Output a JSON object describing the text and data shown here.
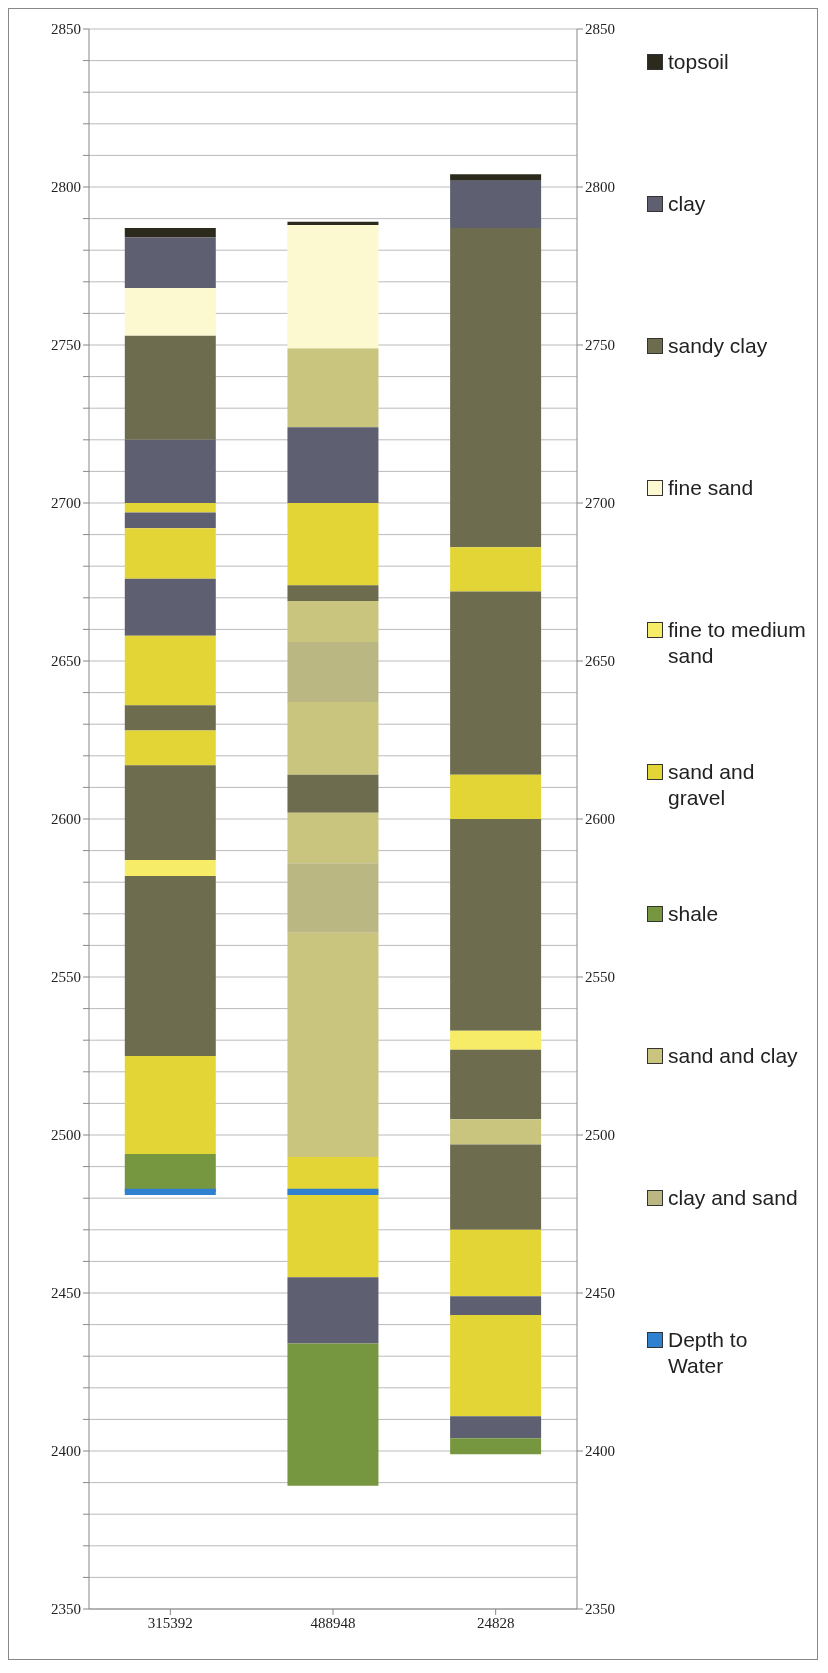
{
  "chart_data": {
    "type": "bar",
    "categories": [
      "315392",
      "488948",
      "24828"
    ],
    "ylim": [
      2350,
      2850
    ],
    "yticks": [
      2350,
      {
        "value": 2360,
        "label": null
      },
      {
        "value": 2370,
        "label": null
      },
      {
        "value": 2380,
        "label": null
      },
      {
        "value": 2390,
        "label": null
      },
      2400,
      {
        "value": 2410,
        "label": null
      },
      {
        "value": 2420,
        "label": null
      },
      {
        "value": 2430,
        "label": null
      },
      {
        "value": 2440,
        "label": null
      },
      2450,
      {
        "value": 2460,
        "label": null
      },
      {
        "value": 2470,
        "label": null
      },
      {
        "value": 2480,
        "label": null
      },
      {
        "value": 2490,
        "label": null
      },
      2500,
      {
        "value": 2510,
        "label": null
      },
      {
        "value": 2520,
        "label": null
      },
      {
        "value": 2530,
        "label": null
      },
      {
        "value": 2540,
        "label": null
      },
      2550,
      {
        "value": 2560,
        "label": null
      },
      {
        "value": 2570,
        "label": null
      },
      {
        "value": 2580,
        "label": null
      },
      {
        "value": 2590,
        "label": null
      },
      2600,
      {
        "value": 2610,
        "label": null
      },
      {
        "value": 2620,
        "label": null
      },
      {
        "value": 2630,
        "label": null
      },
      {
        "value": 2640,
        "label": null
      },
      2650,
      {
        "value": 2660,
        "label": null
      },
      {
        "value": 2670,
        "label": null
      },
      {
        "value": 2680,
        "label": null
      },
      {
        "value": 2690,
        "label": null
      },
      2700,
      {
        "value": 2710,
        "label": null
      },
      {
        "value": 2720,
        "label": null
      },
      {
        "value": 2730,
        "label": null
      },
      {
        "value": 2740,
        "label": null
      },
      2750,
      {
        "value": 2760,
        "label": null
      },
      {
        "value": 2770,
        "label": null
      },
      {
        "value": 2780,
        "label": null
      },
      {
        "value": 2790,
        "label": null
      },
      2800,
      {
        "value": 2810,
        "label": null
      },
      {
        "value": 2820,
        "label": null
      },
      {
        "value": 2830,
        "label": null
      },
      {
        "value": 2840,
        "label": null
      },
      2850
    ],
    "y2lim": [
      2350,
      2850
    ],
    "y2ticks": [
      2350,
      2400,
      2450,
      2500,
      2550,
      2600,
      2650,
      2700,
      2750,
      2800,
      2850
    ],
    "grid": "y",
    "legend": "right",
    "series": [
      {
        "name": "topsoil",
        "color": "#2b2a1c",
        "base": [
          2784,
          null,
          null
        ],
        "values": [
          3,
          null,
          null
        ]
      },
      {
        "name": "clay",
        "color": "#5e5f70",
        "base": [
          2768,
          null,
          null
        ],
        "values": [
          16,
          null,
          null
        ]
      },
      {
        "name": "sandy clay",
        "color": "#6e6c4e",
        "base": [
          2720,
          null,
          null
        ],
        "values": [
          33,
          null,
          null
        ]
      },
      {
        "name": "fine sand",
        "color": "#fcf8cf",
        "base": [
          2753,
          null,
          null
        ],
        "values": [
          15,
          null,
          null
        ]
      },
      {
        "name": "fine to medium sand",
        "color": "#f6ec68",
        "base": [
          2582,
          null,
          null
        ],
        "values": [
          5,
          null,
          null
        ]
      },
      {
        "name": "sand and gravel",
        "color": "#e4d536",
        "base": [
          2697,
          null,
          null
        ],
        "values": [
          3,
          null,
          null
        ]
      },
      {
        "name": "shale",
        "color": "#76963f",
        "base": [
          2482,
          null,
          null
        ],
        "values": [
          12,
          null,
          null
        ]
      },
      {
        "name": "sand and clay",
        "color": "#c9c47e",
        "base": [
          null,
          2724,
          null
        ],
        "values": [
          null,
          25,
          null
        ]
      },
      {
        "name": "clay and sand",
        "color": "#bbb783",
        "base": [
          null,
          2637,
          null
        ],
        "values": [
          null,
          19,
          null
        ]
      },
      {
        "color": "#5e5f70",
        "base": [
          2700,
          null,
          null
        ],
        "values": [
          20,
          null,
          null
        ]
      },
      {
        "color": "#5e5f70",
        "base": [
          2692,
          null,
          null
        ],
        "values": [
          5,
          null,
          null
        ]
      },
      {
        "color": "#e4d536",
        "base": [
          2676,
          null,
          null
        ],
        "values": [
          16,
          null,
          null
        ]
      },
      {
        "color": "#5e5f70",
        "base": [
          2658,
          null,
          null
        ],
        "values": [
          18,
          null,
          null
        ]
      },
      {
        "color": "#e4d536",
        "base": [
          2636,
          null,
          null
        ],
        "values": [
          22,
          null,
          null
        ]
      },
      {
        "color": "#6e6c4e",
        "base": [
          2628,
          null,
          null
        ],
        "values": [
          8,
          null,
          null
        ]
      },
      {
        "color": "#e4d536",
        "base": [
          2617,
          null,
          null
        ],
        "values": [
          11,
          null,
          null
        ]
      },
      {
        "color": "#6e6c4e",
        "base": [
          2587,
          null,
          null
        ],
        "values": [
          30,
          null,
          null
        ]
      },
      {
        "color": "#6e6c4e",
        "base": [
          2525,
          null,
          null
        ],
        "values": [
          57,
          null,
          null
        ]
      },
      {
        "color": "#e4d536",
        "base": [
          2494,
          null,
          null
        ],
        "values": [
          31,
          null,
          null
        ]
      },
      {
        "color": "#2b2a1c",
        "base": [
          null,
          2788,
          null
        ],
        "values": [
          null,
          1,
          null
        ]
      },
      {
        "color": "#fcf8cf",
        "base": [
          null,
          2749,
          null
        ],
        "values": [
          null,
          39,
          null
        ]
      },
      {
        "color": "#5e5f70",
        "base": [
          null,
          2700,
          null
        ],
        "values": [
          null,
          24,
          null
        ]
      },
      {
        "color": "#e4d536",
        "base": [
          null,
          2674,
          null
        ],
        "values": [
          null,
          26,
          null
        ]
      },
      {
        "color": "#6e6c4e",
        "base": [
          null,
          2669,
          null
        ],
        "values": [
          null,
          5,
          null
        ]
      },
      {
        "color": "#c9c47e",
        "base": [
          null,
          2656,
          null
        ],
        "values": [
          null,
          13,
          null
        ]
      },
      {
        "color": "#c9c47e",
        "base": [
          null,
          2614,
          null
        ],
        "values": [
          null,
          23,
          null
        ]
      },
      {
        "color": "#6e6c4e",
        "base": [
          null,
          2602,
          null
        ],
        "values": [
          null,
          12,
          null
        ]
      },
      {
        "color": "#c9c47e",
        "base": [
          null,
          2586,
          null
        ],
        "values": [
          null,
          16,
          null
        ]
      },
      {
        "color": "#bbb783",
        "base": [
          null,
          2564,
          null
        ],
        "values": [
          null,
          22,
          null
        ]
      },
      {
        "color": "#c9c47e",
        "base": [
          null,
          2493,
          null
        ],
        "values": [
          null,
          71,
          null
        ]
      },
      {
        "color": "#e4d536",
        "base": [
          null,
          2455,
          null
        ],
        "values": [
          null,
          38,
          null
        ]
      },
      {
        "color": "#5e5f70",
        "base": [
          null,
          2434,
          null
        ],
        "values": [
          null,
          21,
          null
        ]
      },
      {
        "color": "#76963f",
        "base": [
          null,
          2389,
          null
        ],
        "values": [
          null,
          45,
          null
        ]
      },
      {
        "color": "#2b2a1c",
        "base": [
          null,
          null,
          2802
        ],
        "values": [
          null,
          null,
          2
        ]
      },
      {
        "color": "#5e5f70",
        "base": [
          null,
          null,
          2787
        ],
        "values": [
          null,
          null,
          15
        ]
      },
      {
        "color": "#6e6c4e",
        "base": [
          null,
          null,
          2686
        ],
        "values": [
          null,
          null,
          101
        ]
      },
      {
        "color": "#e4d536",
        "base": [
          null,
          null,
          2672
        ],
        "values": [
          null,
          null,
          14
        ]
      },
      {
        "color": "#6e6c4e",
        "base": [
          null,
          null,
          2614
        ],
        "values": [
          null,
          null,
          58
        ]
      },
      {
        "color": "#e4d536",
        "base": [
          null,
          null,
          2600
        ],
        "values": [
          null,
          null,
          14
        ]
      },
      {
        "color": "#6e6c4e",
        "base": [
          null,
          null,
          2533
        ],
        "values": [
          null,
          null,
          67
        ]
      },
      {
        "color": "#f6ec68",
        "base": [
          null,
          null,
          2527
        ],
        "values": [
          null,
          null,
          6
        ]
      },
      {
        "color": "#6e6c4e",
        "base": [
          null,
          null,
          2505
        ],
        "values": [
          null,
          null,
          22
        ]
      },
      {
        "color": "#c9c47e",
        "base": [
          null,
          null,
          2497
        ],
        "values": [
          null,
          null,
          8
        ]
      },
      {
        "color": "#6e6c4e",
        "base": [
          null,
          null,
          2470
        ],
        "values": [
          null,
          null,
          27
        ]
      },
      {
        "color": "#e4d536",
        "base": [
          null,
          null,
          2449
        ],
        "values": [
          null,
          null,
          21
        ]
      },
      {
        "color": "#5e5f70",
        "base": [
          null,
          null,
          2443
        ],
        "values": [
          null,
          null,
          6
        ]
      },
      {
        "color": "#e4d536",
        "base": [
          null,
          null,
          2411
        ],
        "values": [
          null,
          null,
          32
        ]
      },
      {
        "color": "#5e5f70",
        "base": [
          null,
          null,
          2404
        ],
        "values": [
          null,
          null,
          7
        ]
      },
      {
        "color": "#76963f",
        "base": [
          null,
          null,
          2399
        ],
        "values": [
          null,
          null,
          5
        ]
      },
      {
        "name": "Depth to Water",
        "color": "#2f80d0",
        "base": [
          2481,
          2481,
          null
        ],
        "values": [
          2,
          2,
          null
        ]
      }
    ]
  }
}
